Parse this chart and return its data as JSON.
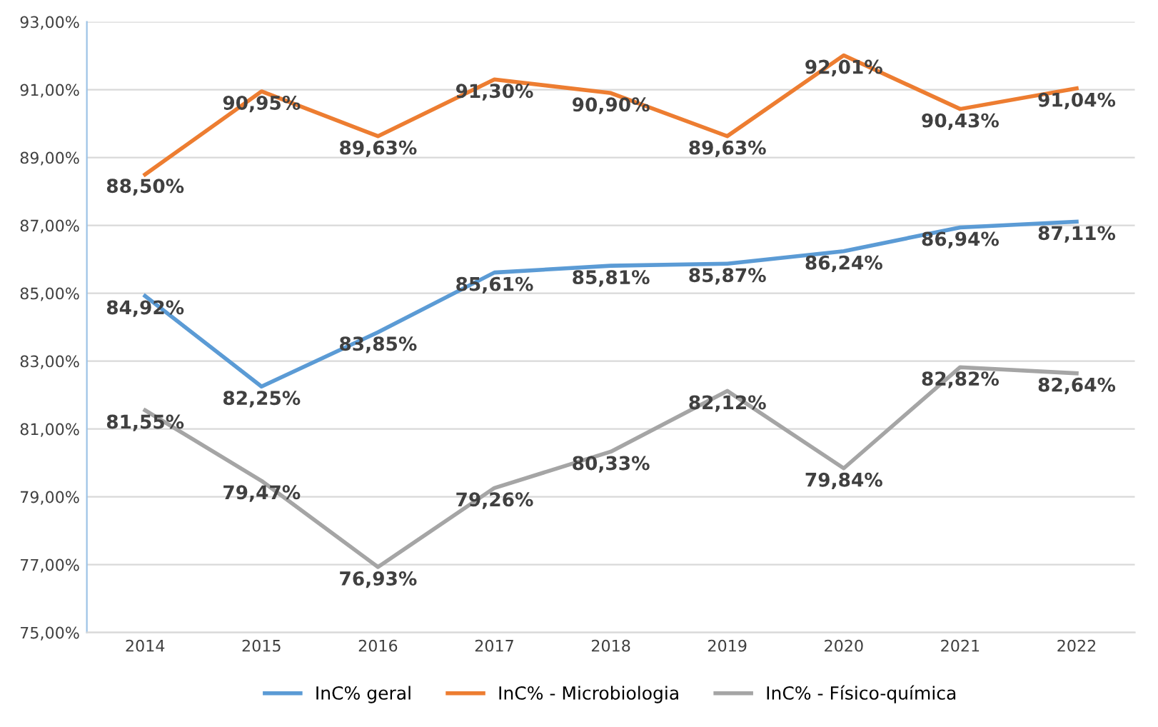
{
  "chart_data": {
    "type": "line",
    "categories": [
      "2014",
      "2015",
      "2016",
      "2017",
      "2018",
      "2019",
      "2020",
      "2021",
      "2022"
    ],
    "series": [
      {
        "name": "InC% geral",
        "color": "#5b9bd5",
        "values": [
          84.92,
          82.25,
          83.85,
          85.61,
          85.81,
          85.87,
          86.24,
          86.94,
          87.11
        ],
        "value_labels": [
          "84,92%",
          "82,25%",
          "83,85%",
          "85,61%",
          "85,81%",
          "85,87%",
          "86,24%",
          "86,94%",
          "87,11%"
        ]
      },
      {
        "name": "InC% - Microbiologia",
        "color": "#ed7d31",
        "values": [
          88.5,
          90.95,
          89.63,
          91.3,
          90.9,
          89.63,
          92.01,
          90.43,
          91.04
        ],
        "value_labels": [
          "88,50%",
          "90,95%",
          "89,63%",
          "91,30%",
          "90,90%",
          "89,63%",
          "92,01%",
          "90,43%",
          "91,04%"
        ]
      },
      {
        "name": "InC% - Físico-química",
        "color": "#a5a5a5",
        "values": [
          81.55,
          79.47,
          76.93,
          79.26,
          80.33,
          82.12,
          79.84,
          82.82,
          82.64
        ],
        "value_labels": [
          "81,55%",
          "79,47%",
          "76,93%",
          "79,26%",
          "80,33%",
          "82,12%",
          "79,84%",
          "82,82%",
          "82,64%"
        ]
      }
    ],
    "ylim": [
      75,
      93
    ],
    "yticks": [
      {
        "value": 75,
        "label": "75,00%"
      },
      {
        "value": 77,
        "label": "77,00%"
      },
      {
        "value": 79,
        "label": "79,00%"
      },
      {
        "value": 81,
        "label": "81,00%"
      },
      {
        "value": 83,
        "label": "83,00%"
      },
      {
        "value": 85,
        "label": "85,00%"
      },
      {
        "value": 87,
        "label": "87,00%"
      },
      {
        "value": 89,
        "label": "89,00%"
      },
      {
        "value": 91,
        "label": "91,00%"
      },
      {
        "value": 93,
        "label": "93,00%"
      }
    ],
    "grid": "y",
    "legend": "bottom",
    "marker": "none",
    "line_style": "solid"
  }
}
